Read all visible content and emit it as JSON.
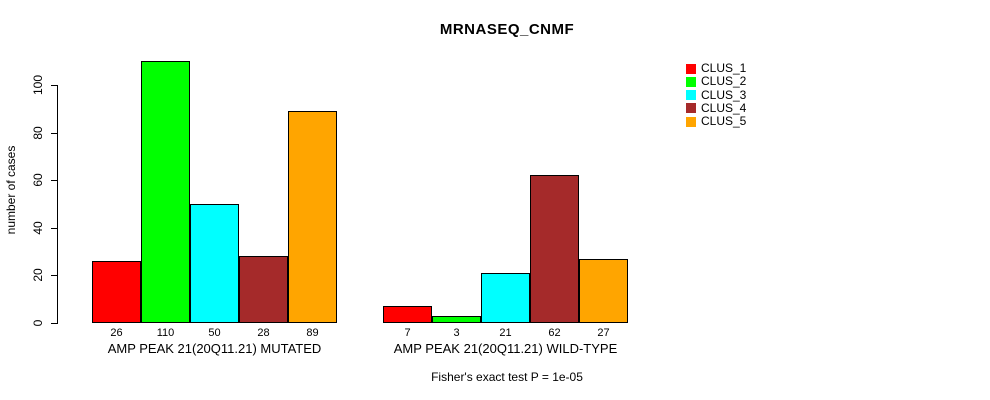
{
  "title": "MRNASEQ_CNMF",
  "footer": "Fisher's exact test P = 1e-05",
  "chart_data": {
    "type": "bar",
    "title": "MRNASEQ_CNMF",
    "ylabel": "number of cases",
    "xlabel": "",
    "yticks": [
      0,
      20,
      40,
      60,
      80,
      100
    ],
    "ylim": [
      0,
      115
    ],
    "grid": false,
    "legend_position": "top-right",
    "bar_border_color": "#000000",
    "groups": [
      {
        "label": "AMP PEAK 21(20Q11.21) MUTATED",
        "values": [
          26,
          110,
          50,
          28,
          89
        ]
      },
      {
        "label": "AMP PEAK 21(20Q11.21) WILD-TYPE",
        "values": [
          7,
          3,
          21,
          62,
          27
        ]
      }
    ],
    "series": [
      {
        "name": "CLUS_1",
        "color": "#FF0000"
      },
      {
        "name": "CLUS_2",
        "color": "#00FF00"
      },
      {
        "name": "CLUS_3",
        "color": "#00FFFF"
      },
      {
        "name": "CLUS_4",
        "color": "#A52A2A"
      },
      {
        "name": "CLUS_5",
        "color": "#FFA500"
      }
    ],
    "annotation": "Fisher's exact test P = 1e-05"
  }
}
